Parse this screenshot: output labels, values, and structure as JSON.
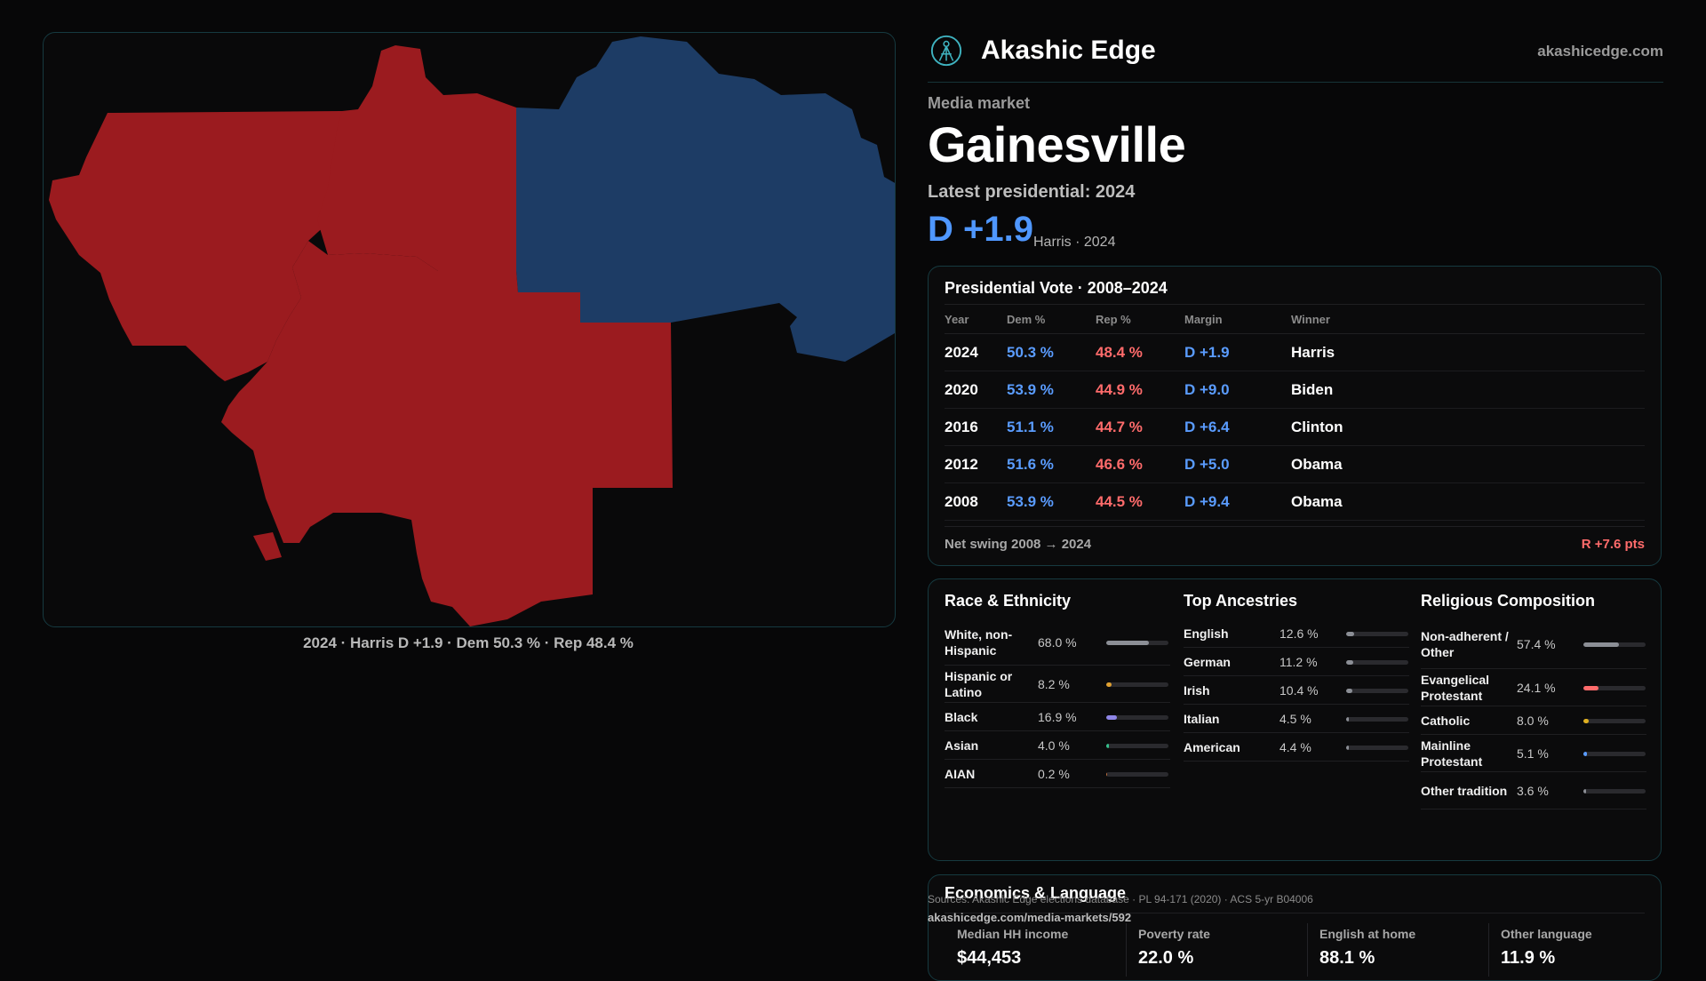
{
  "map": {
    "caption": "2024 · Harris D +1.9 · Dem 50.3 % · Rep 48.4 %",
    "colors": {
      "rep": "#9b1b1f",
      "dem": "#1d3c65"
    }
  },
  "header": {
    "brand": "Akashic Edge",
    "url": "akashicedge.com"
  },
  "market": {
    "kicker": "Media market",
    "name": "Gainesville",
    "latest_label": "Latest presidential: 2024",
    "margin": "D +1.9",
    "margin_sub": "Harris · 2024"
  },
  "vote": {
    "title": "Presidential Vote · 2008–2024",
    "headers": {
      "year": "Year",
      "dem": "Dem %",
      "rep": "Rep %",
      "margin": "Margin",
      "winner": "Winner"
    },
    "rows": [
      {
        "year": "2024",
        "dem": "50.3 %",
        "rep": "48.4 %",
        "margin": "D +1.9",
        "winner": "Harris"
      },
      {
        "year": "2020",
        "dem": "53.9 %",
        "rep": "44.9 %",
        "margin": "D +9.0",
        "winner": "Biden"
      },
      {
        "year": "2016",
        "dem": "51.1 %",
        "rep": "44.7 %",
        "margin": "D +6.4",
        "winner": "Clinton"
      },
      {
        "year": "2012",
        "dem": "51.6 %",
        "rep": "46.6 %",
        "margin": "D +5.0",
        "winner": "Obama"
      },
      {
        "year": "2008",
        "dem": "53.9 %",
        "rep": "44.5 %",
        "margin": "D +9.4",
        "winner": "Obama"
      }
    ],
    "swing_label": "Net swing 2008 → 2024",
    "swing_value": "R +7.6 pts"
  },
  "race": {
    "title": "Race & Ethnicity",
    "items": [
      {
        "label": "White, non-Hispanic",
        "value": "68.0 %",
        "pct": 68.0,
        "color": "#8c8f96"
      },
      {
        "label": "Hispanic or Latino",
        "value": "8.2 %",
        "pct": 8.2,
        "color": "#e0a030"
      },
      {
        "label": "Black",
        "value": "16.9 %",
        "pct": 16.9,
        "color": "#8f86e8"
      },
      {
        "label": "Asian",
        "value": "4.0 %",
        "pct": 4.0,
        "color": "#35c08c"
      },
      {
        "label": "AIAN",
        "value": "0.2 %",
        "pct": 0.2,
        "color": "#c07040"
      }
    ]
  },
  "ancestry": {
    "title": "Top Ancestries",
    "items": [
      {
        "label": "English",
        "value": "12.6 %",
        "pct": 12.6,
        "color": "#8c8f96"
      },
      {
        "label": "German",
        "value": "11.2 %",
        "pct": 11.2,
        "color": "#8c8f96"
      },
      {
        "label": "Irish",
        "value": "10.4 %",
        "pct": 10.4,
        "color": "#8c8f96"
      },
      {
        "label": "Italian",
        "value": "4.5 %",
        "pct": 4.5,
        "color": "#8c8f96"
      },
      {
        "label": "American",
        "value": "4.4 %",
        "pct": 4.4,
        "color": "#8c8f96"
      }
    ]
  },
  "religion": {
    "title": "Religious Composition",
    "items": [
      {
        "label": "Non-adherent / Other",
        "value": "57.4 %",
        "pct": 57.4,
        "color": "#8c8f96"
      },
      {
        "label": "Evangelical Protestant",
        "value": "24.1 %",
        "pct": 24.1,
        "color": "#ff6b6b"
      },
      {
        "label": "Catholic",
        "value": "8.0 %",
        "pct": 8.0,
        "color": "#e0b020"
      },
      {
        "label": "Mainline Protestant",
        "value": "5.1 %",
        "pct": 5.1,
        "color": "#5a9cff"
      },
      {
        "label": "Other tradition",
        "value": "3.6 %",
        "pct": 3.6,
        "color": "#8c8f96"
      }
    ]
  },
  "econ": {
    "title": "Economics & Language",
    "stats": [
      {
        "label": "Median HH income",
        "value": "$44,453"
      },
      {
        "label": "Poverty rate",
        "value": "22.0 %"
      },
      {
        "label": "English at home",
        "value": "88.1 %"
      },
      {
        "label": "Other language",
        "value": "11.9 %"
      }
    ]
  },
  "footer": {
    "sources": "Sources: Akashic Edge elections database · PL 94-171 (2020) · ACS 5-yr B04006",
    "permalink": "akashicedge.com/media-markets/592"
  }
}
